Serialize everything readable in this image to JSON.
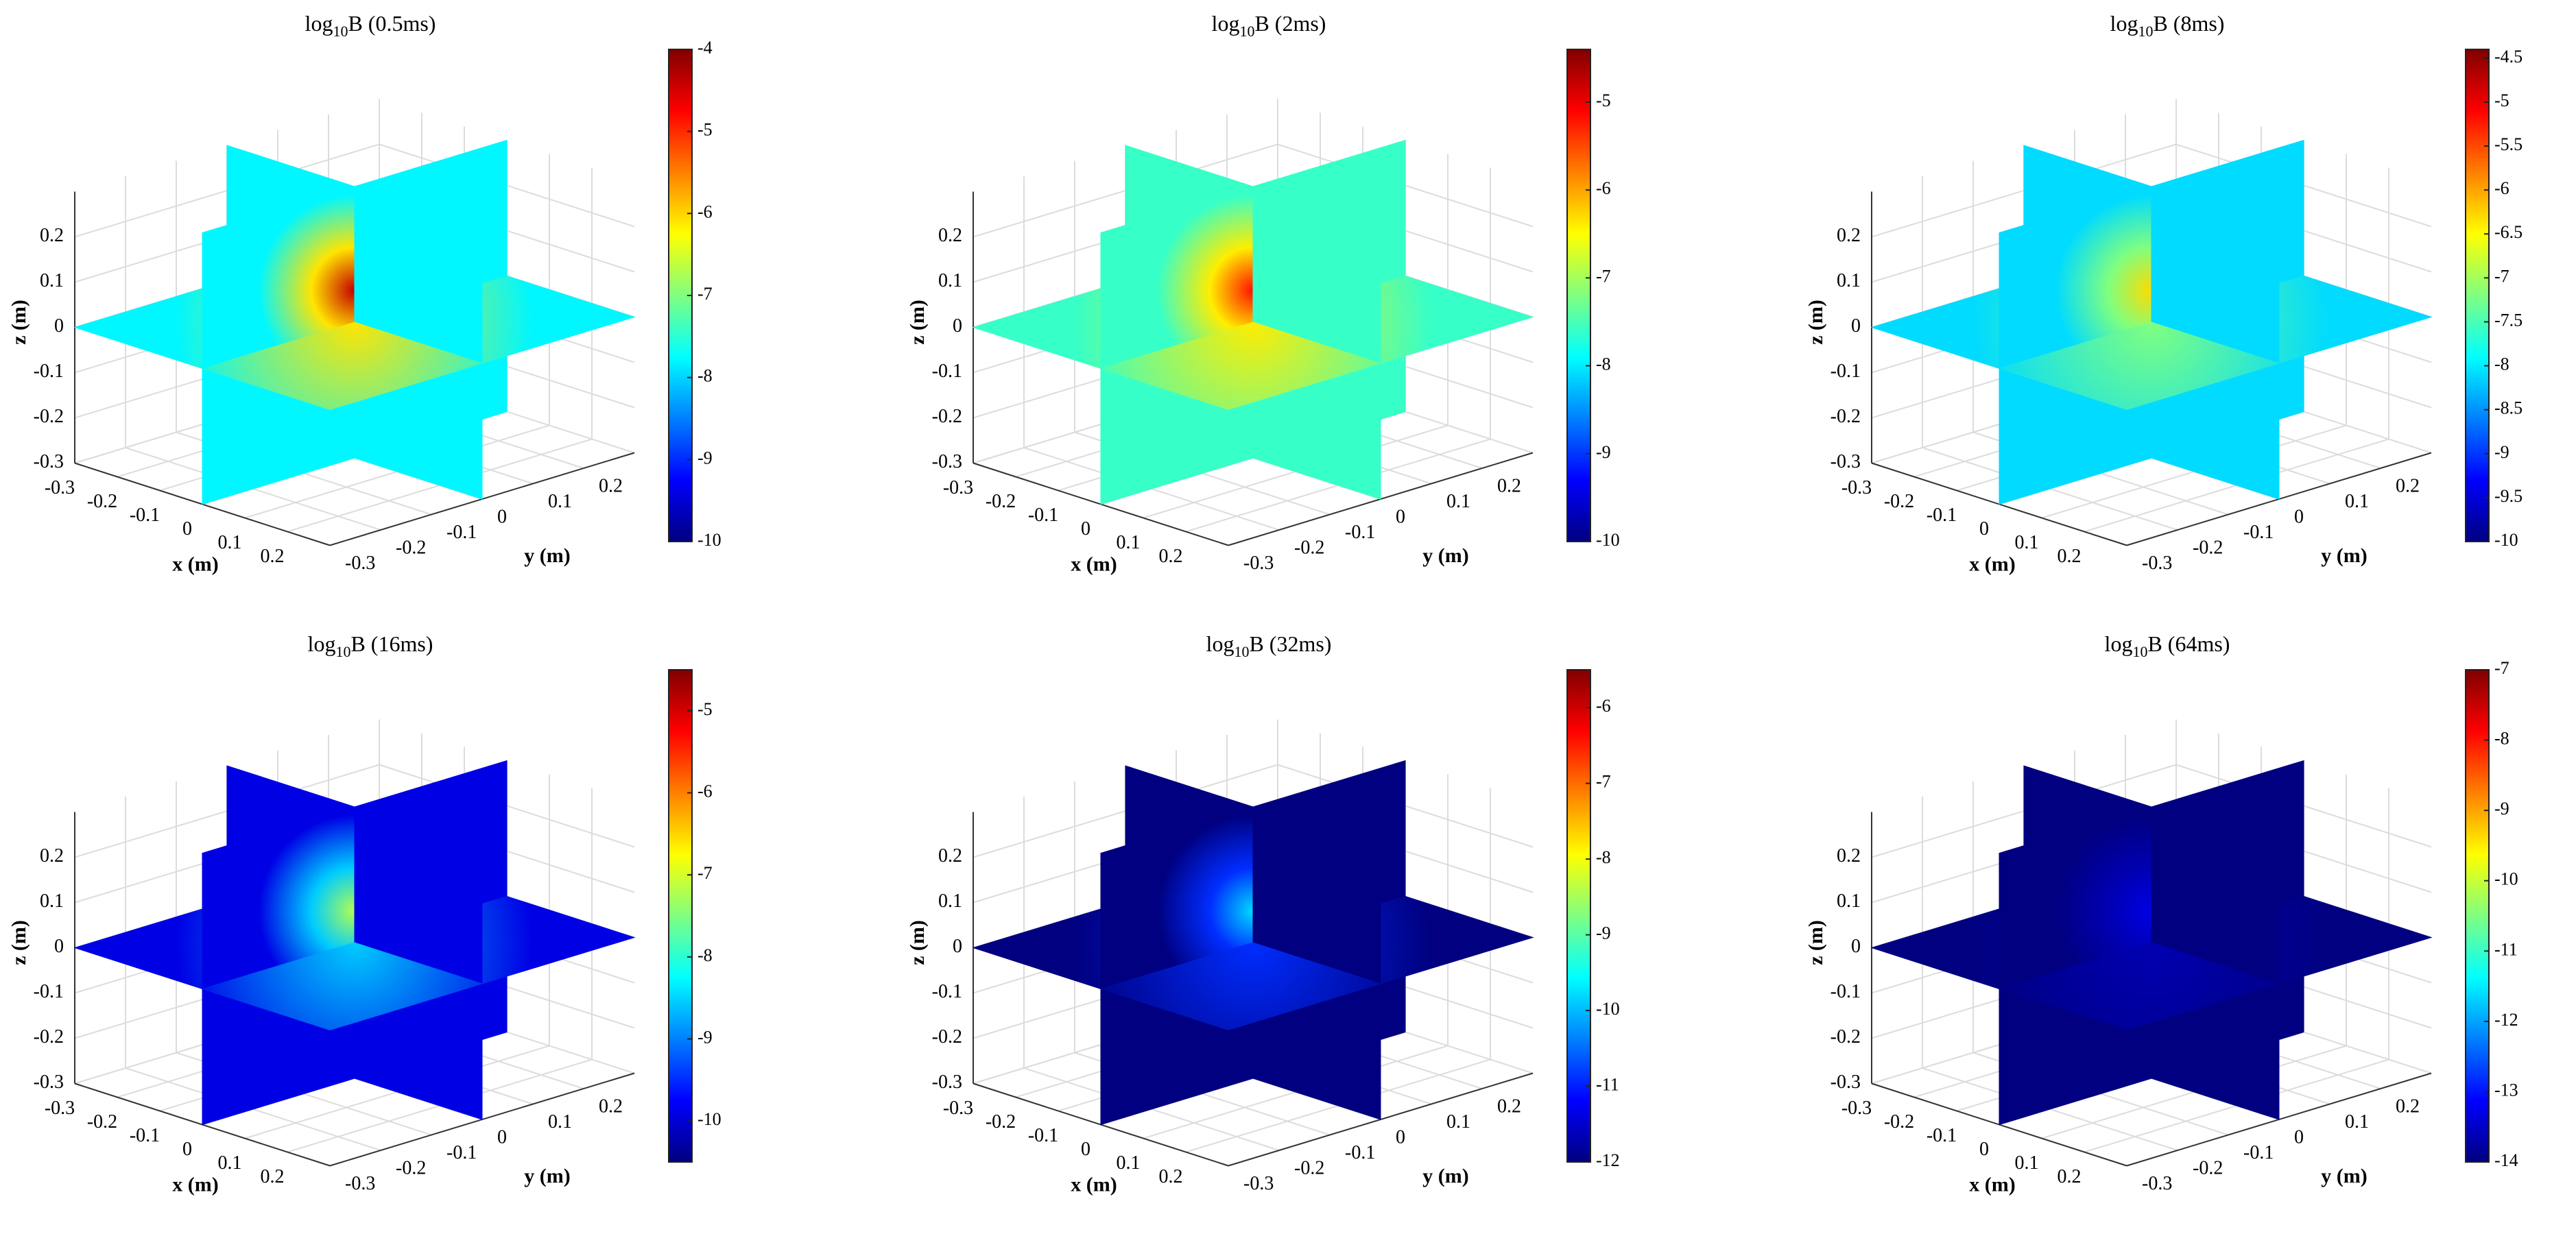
{
  "chart_data": [
    {
      "type": "slice3d",
      "title": [
        "log",
        "10",
        "B (0.5ms)"
      ],
      "xlabel": "x (m)",
      "ylabel": "y (m)",
      "zlabel": "z (m)",
      "xlim": [
        -0.3,
        0.3
      ],
      "ylim": [
        -0.3,
        0.3
      ],
      "zlim": [
        -0.3,
        0.3
      ],
      "xticks": [
        -0.3,
        -0.2,
        -0.1,
        0,
        0.1,
        0.2
      ],
      "yticks": [
        -0.3,
        -0.2,
        -0.1,
        0,
        0.1,
        0.2
      ],
      "zticks": [
        -0.3,
        -0.2,
        -0.1,
        0,
        0.1,
        0.2
      ],
      "colormap": "jet",
      "clim": [
        -10,
        -4
      ],
      "cticks": [
        -10,
        -9,
        -8,
        -7,
        -6,
        -5,
        -4
      ],
      "background_level": -7.8,
      "peak_level": -4.4,
      "grid": true
    },
    {
      "type": "slice3d",
      "title": [
        "log",
        "10",
        "B (2ms)"
      ],
      "xlabel": "x (m)",
      "ylabel": "y (m)",
      "zlabel": "z (m)",
      "xlim": [
        -0.3,
        0.3
      ],
      "ylim": [
        -0.3,
        0.3
      ],
      "zlim": [
        -0.3,
        0.3
      ],
      "xticks": [
        -0.3,
        -0.2,
        -0.1,
        0,
        0.1,
        0.2
      ],
      "yticks": [
        -0.3,
        -0.2,
        -0.1,
        0,
        0.1,
        0.2
      ],
      "zticks": [
        -0.3,
        -0.2,
        -0.1,
        0,
        0.1,
        0.2
      ],
      "colormap": "jet",
      "clim": [
        -10,
        -4.4
      ],
      "cticks": [
        -10,
        -9,
        -8,
        -7,
        -6,
        -5
      ],
      "background_level": -7.6,
      "peak_level": -5.2,
      "grid": true
    },
    {
      "type": "slice3d",
      "title": [
        "log",
        "10",
        "B (8ms)"
      ],
      "xlabel": "x (m)",
      "ylabel": "y (m)",
      "zlabel": "z (m)",
      "xlim": [
        -0.3,
        0.3
      ],
      "ylim": [
        -0.3,
        0.3
      ],
      "zlim": [
        -0.3,
        0.3
      ],
      "xticks": [
        -0.3,
        -0.2,
        -0.1,
        0,
        0.1,
        0.2
      ],
      "yticks": [
        -0.3,
        -0.2,
        -0.1,
        0,
        0.1,
        0.2
      ],
      "zticks": [
        -0.3,
        -0.2,
        -0.1,
        0,
        0.1,
        0.2
      ],
      "colormap": "jet",
      "clim": [
        -10,
        -4.4
      ],
      "cticks": [
        -10,
        -9.5,
        -9,
        -8.5,
        -8,
        -7.5,
        -7,
        -6.5,
        -6,
        -5.5,
        -5,
        -4.5
      ],
      "background_level": -8.1,
      "peak_level": -6.3,
      "grid": true
    },
    {
      "type": "slice3d",
      "title": [
        "log",
        "10",
        "B (16ms)"
      ],
      "xlabel": "x (m)",
      "ylabel": "y (m)",
      "zlabel": "z (m)",
      "xlim": [
        -0.3,
        0.3
      ],
      "ylim": [
        -0.3,
        0.3
      ],
      "zlim": [
        -0.3,
        0.3
      ],
      "xticks": [
        -0.3,
        -0.2,
        -0.1,
        0,
        0.1,
        0.2
      ],
      "yticks": [
        -0.3,
        -0.2,
        -0.1,
        0,
        0.1,
        0.2
      ],
      "zticks": [
        -0.3,
        -0.2,
        -0.1,
        0,
        0.1,
        0.2
      ],
      "colormap": "jet",
      "clim": [
        -10.5,
        -4.5
      ],
      "cticks": [
        -10,
        -9,
        -8,
        -7,
        -6,
        -5
      ],
      "background_level": -9.9,
      "peak_level": -7.2,
      "grid": true
    },
    {
      "type": "slice3d",
      "title": [
        "log",
        "10",
        "B (32ms)"
      ],
      "xlabel": "x (m)",
      "ylabel": "y (m)",
      "zlabel": "z (m)",
      "xlim": [
        -0.3,
        0.3
      ],
      "ylim": [
        -0.3,
        0.3
      ],
      "zlim": [
        -0.3,
        0.3
      ],
      "xticks": [
        -0.3,
        -0.2,
        -0.1,
        0,
        0.1,
        0.2
      ],
      "yticks": [
        -0.3,
        -0.2,
        -0.1,
        0,
        0.1,
        0.2
      ],
      "zticks": [
        -0.3,
        -0.2,
        -0.1,
        0,
        0.1,
        0.2
      ],
      "colormap": "jet",
      "clim": [
        -12,
        -5.5
      ],
      "cticks": [
        -12,
        -11,
        -10,
        -9,
        -8,
        -7,
        -6
      ],
      "background_level": -12,
      "peak_level": -9.8,
      "grid": true
    },
    {
      "type": "slice3d",
      "title": [
        "log",
        "10",
        "B (64ms)"
      ],
      "xlabel": "x (m)",
      "ylabel": "y (m)",
      "zlabel": "z (m)",
      "xlim": [
        -0.3,
        0.3
      ],
      "ylim": [
        -0.3,
        0.3
      ],
      "zlim": [
        -0.3,
        0.3
      ],
      "xticks": [
        -0.3,
        -0.2,
        -0.1,
        0,
        0.1,
        0.2
      ],
      "yticks": [
        -0.3,
        -0.2,
        -0.1,
        0,
        0.1,
        0.2
      ],
      "zticks": [
        -0.3,
        -0.2,
        -0.1,
        0,
        0.1,
        0.2
      ],
      "colormap": "jet",
      "clim": [
        -14,
        -7
      ],
      "cticks": [
        -14,
        -13,
        -12,
        -11,
        -10,
        -9,
        -8,
        -7
      ],
      "background_level": -14,
      "peak_level": -13.3,
      "grid": true
    }
  ]
}
